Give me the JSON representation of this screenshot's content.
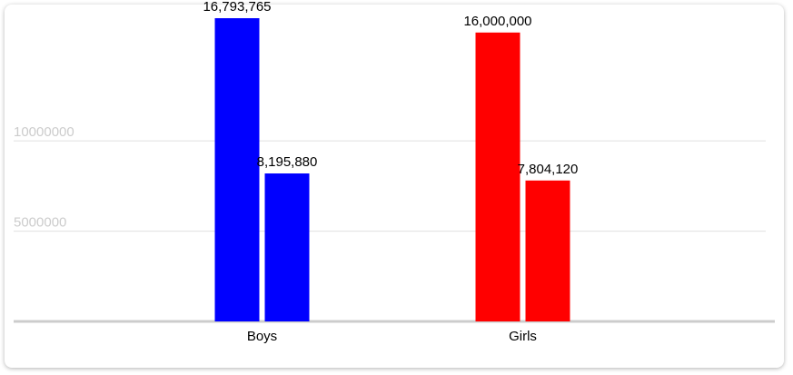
{
  "chart_data": {
    "type": "bar",
    "categories": [
      "Boys",
      "Girls"
    ],
    "colors": [
      "#0000ff",
      "#ff0000"
    ],
    "series": [
      {
        "values": [
          16793765,
          16000000
        ],
        "value_labels": [
          "16,793,765",
          "16,000,000"
        ]
      },
      {
        "values": [
          8195880,
          7804120
        ],
        "value_labels": [
          "8,195,880",
          "7,804,120"
        ]
      }
    ],
    "ylim": [
      0,
      17500000
    ],
    "yticks": [
      5000000,
      10000000
    ],
    "grid": true
  }
}
